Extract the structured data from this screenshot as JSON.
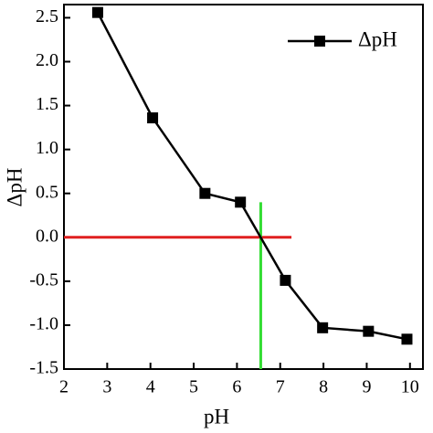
{
  "chart_data": {
    "type": "line",
    "x_label": "pH",
    "y_label": "ΔpH",
    "series": [
      {
        "name": "ΔpH",
        "color": "#000000",
        "x": [
          2.78,
          4.05,
          5.26,
          6.08,
          7.12,
          7.98,
          9.04,
          9.93
        ],
        "values": [
          2.56,
          1.36,
          0.5,
          0.4,
          -0.49,
          -1.03,
          -1.07,
          -1.16
        ]
      }
    ],
    "xlim": [
      2,
      10.3
    ],
    "ylim": [
      -1.5,
      2.65
    ],
    "xticks": [
      2,
      3,
      4,
      5,
      6,
      7,
      8,
      9,
      10
    ],
    "yticks": [
      {
        "value": -1.5,
        "label": "-1.5"
      },
      {
        "value": -1,
        "label": "-1.0"
      },
      {
        "value": -0.5,
        "label": "-0.5"
      },
      {
        "value": 0,
        "label": "0.0"
      },
      {
        "value": 0.5,
        "label": "0.5"
      },
      {
        "value": 1,
        "label": "1.0"
      },
      {
        "value": 1.5,
        "label": "1.5"
      },
      {
        "value": 2,
        "label": "2.0"
      },
      {
        "value": 2.5,
        "label": "2.5"
      }
    ],
    "hline": {
      "y": 0,
      "x": [
        2,
        7.26
      ],
      "color": "#e02020"
    },
    "vline": {
      "x": 6.55,
      "y": [
        0.4,
        -1.5
      ],
      "color": "#33dd33"
    },
    "legend": "top-right",
    "grid": false
  }
}
